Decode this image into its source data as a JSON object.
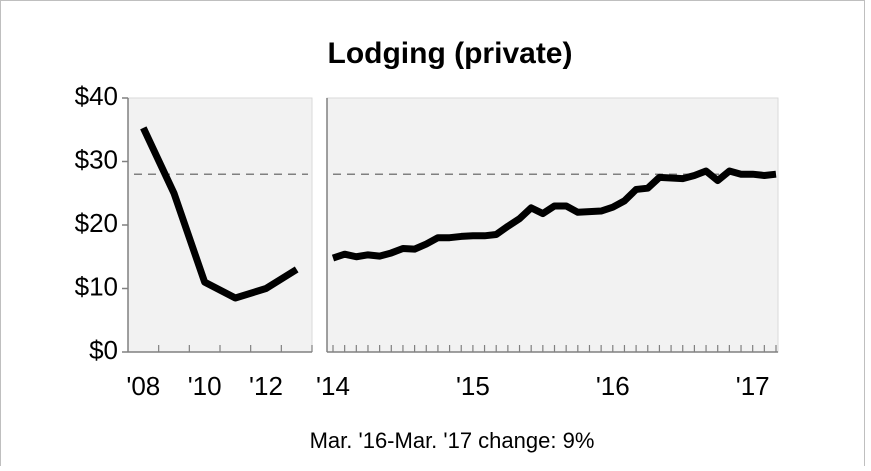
{
  "chart_data": [
    {
      "type": "line",
      "title": "Lodging (private)",
      "categories": [
        "'08",
        null,
        "'10",
        null,
        "'12",
        null
      ],
      "series": [
        {
          "color": "#000000",
          "values": [
            35.3,
            25,
            11,
            8.5,
            10,
            13
          ]
        }
      ],
      "reference_line": 28,
      "ylim": [
        0,
        40
      ],
      "yticks": [
        {
          "value": 0,
          "label": "$0"
        },
        {
          "value": 10,
          "label": "$10"
        },
        {
          "value": 20,
          "label": "$20"
        },
        {
          "value": 30,
          "label": "$30"
        },
        {
          "value": 40,
          "label": "$40"
        }
      ]
    },
    {
      "type": "line",
      "categories": [
        "'14",
        null,
        null,
        null,
        null,
        null,
        null,
        null,
        null,
        null,
        null,
        null,
        "'15",
        null,
        null,
        null,
        null,
        null,
        null,
        null,
        null,
        null,
        null,
        null,
        "'16",
        null,
        null,
        null,
        null,
        null,
        null,
        null,
        null,
        null,
        null,
        null,
        "'17",
        null,
        null
      ],
      "series": [
        {
          "color": "#000000",
          "values": [
            14.8,
            15.4,
            15.0,
            15.3,
            15.1,
            15.6,
            16.3,
            16.2,
            17.0,
            18.0,
            18.0,
            18.2,
            18.3,
            18.3,
            18.5,
            19.8,
            21.0,
            22.7,
            21.8,
            23.0,
            23.0,
            22.0,
            22.1,
            22.2,
            22.8,
            23.8,
            25.6,
            25.8,
            27.5,
            27.4,
            27.3,
            27.8,
            28.5,
            27.0,
            28.5,
            28.0,
            28.0,
            27.8,
            28.0
          ]
        }
      ],
      "reference_line": 28,
      "ylim": [
        0,
        40
      ],
      "annotation": "Mar. '16-Mar. '17 change: 9%"
    }
  ]
}
